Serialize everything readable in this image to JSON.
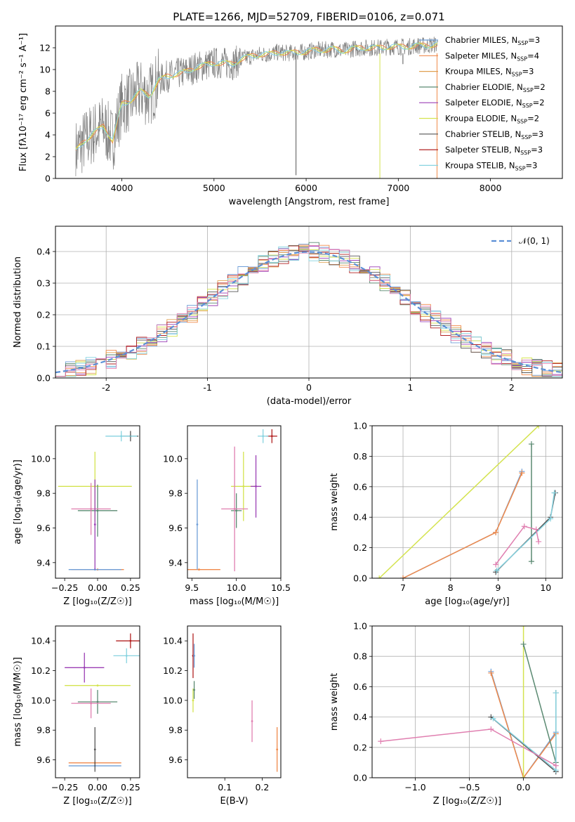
{
  "title": "PLATE=1266, MJD=52709, FIBERID=0106, z=0.071",
  "colors": {
    "chab_miles": "#6f9fd8",
    "salp_miles": "#f08a4b",
    "krou_miles": "#e0a050",
    "chab_elodie": "#5b8a72",
    "salp_elodie": "#9b3fb5",
    "krou_elodie": "#d4e34f",
    "chab_stelib": "#555555",
    "salp_stelib": "#b22222",
    "krou_stelib": "#87d3e0",
    "obs": "#808080",
    "norm": "#5b8fd6",
    "pink": "#e07fb0",
    "grid": "#b0b0b0"
  },
  "chart_data": [
    {
      "id": "spectrum",
      "type": "line",
      "xlabel": "wavelength [Angstrom, rest frame]",
      "ylabel": "Flux [fλ10⁻¹⁷ erg cm⁻² s⁻¹ A⁻¹]",
      "xlim": [
        3280,
        8780
      ],
      "ylim": [
        0,
        14
      ],
      "xticks": [
        4000,
        5000,
        6000,
        7000,
        8000
      ],
      "yticks": [
        0,
        2,
        4,
        6,
        8,
        10,
        12
      ],
      "grid": false,
      "legend": "upper-right",
      "observed": {
        "x": [
          3500,
          3600,
          3700,
          3800,
          3900,
          4000,
          4100,
          4200,
          4300,
          4400,
          4500,
          4600,
          4700,
          4800,
          4900,
          5000,
          5100,
          5200,
          5300,
          5400,
          5500,
          5600,
          5700,
          5800,
          5900,
          6000,
          6100,
          6200,
          6300,
          6400,
          6500,
          6600,
          6700,
          6800,
          6900,
          7000,
          7100,
          7200,
          7300,
          7400
        ],
        "y": [
          2.5,
          3.5,
          4.2,
          4.8,
          3.5,
          6.8,
          7.2,
          8.0,
          7.6,
          9.0,
          9.4,
          9.6,
          9.8,
          10.2,
          10.4,
          10.6,
          10.6,
          10.5,
          11.0,
          11.2,
          11.4,
          11.4,
          11.6,
          11.5,
          11.6,
          11.6,
          11.8,
          11.8,
          11.9,
          11.7,
          11.9,
          12.0,
          12.0,
          12.0,
          12.1,
          12.1,
          12.1,
          12.2,
          12.2,
          12.3
        ]
      },
      "legend_entries": [
        "Chabrier MILES, N_SSP=3",
        "Salpeter MILES, N_SSP=4",
        "Kroupa MILES, N_SSP=3",
        "Chabrier ELODIE, N_SSP=2",
        "Salpeter ELODIE, N_SSP=2",
        "Kroupa ELODIE, N_SSP=2",
        "Chabrier STELIB, N_SSP=3",
        "Salpeter STELIB, N_SSP=3",
        "Kroupa STELIB, N_SSP=3"
      ]
    },
    {
      "id": "residuals",
      "type": "line",
      "xlabel": "(data-model)/error",
      "ylabel": "Normed distribution",
      "xlim": [
        -2.5,
        2.5
      ],
      "ylim": [
        0,
        0.48
      ],
      "xticks": [
        -2,
        -1,
        0,
        1,
        2
      ],
      "yticks": [
        0.0,
        0.1,
        0.2,
        0.3,
        0.4
      ],
      "grid": true,
      "legend": "upper-right",
      "normal_label": "𝒩(0, 1)",
      "normal_mean": 0,
      "normal_sigma": 1
    },
    {
      "id": "age_vs_Z",
      "type": "scatter",
      "xlabel": "Z [log₁₀(Z/Z☉)]",
      "ylabel": "age  [log₁₀(age/yr)]",
      "xlim": [
        -0.32,
        0.32
      ],
      "ylim": [
        9.31,
        10.19
      ],
      "xticks": [
        -0.25,
        0.0,
        0.25
      ],
      "xticklabels": [
        "−0.25",
        "0.00",
        "0.25"
      ],
      "yticks": [
        9.4,
        9.6,
        9.8,
        10.0
      ],
      "points": [
        {
          "c": "salp_miles",
          "x": 0.0,
          "y": 9.36,
          "xerr": 0.2,
          "yerr": 0.0
        },
        {
          "c": "chab_miles",
          "x": -0.02,
          "y": 9.36,
          "xerr": 0.2,
          "yerr": 0.0
        },
        {
          "c": "krou_elodie",
          "x": -0.02,
          "y": 9.84,
          "xerr": 0.28,
          "yerr": 0.2
        },
        {
          "c": "chab_elodie",
          "x": 0.0,
          "y": 9.7,
          "xerr": 0.15,
          "yerr": 0.15
        },
        {
          "c": "pink",
          "x": -0.05,
          "y": 9.71,
          "xerr": 0.15,
          "yerr": 0.15
        },
        {
          "c": "salp_elodie",
          "x": -0.02,
          "y": 9.62,
          "xerr": 0.0,
          "yerr": 0.26
        },
        {
          "c": "chab_stelib",
          "x": 0.25,
          "y": 10.13,
          "xerr": 0.06,
          "yerr": 0.03
        },
        {
          "c": "krou_stelib",
          "x": 0.18,
          "y": 10.13,
          "xerr": 0.12,
          "yerr": 0.03
        }
      ]
    },
    {
      "id": "age_vs_mass",
      "type": "scatter",
      "xlabel": "mass [log₁₀(M/M☉)]",
      "ylabel": "",
      "xlim": [
        9.45,
        10.5
      ],
      "ylim": [
        9.31,
        10.19
      ],
      "xticks": [
        9.5,
        10.0,
        10.5
      ],
      "xticklabels": [
        "9.5",
        "10.0",
        "10.5"
      ],
      "yticks": [
        9.4,
        9.6,
        9.8,
        10.0
      ],
      "points": [
        {
          "c": "salp_miles",
          "x": 9.58,
          "y": 9.36,
          "xerr": 0.24,
          "yerr": 0.0
        },
        {
          "c": "chab_miles",
          "x": 9.56,
          "y": 9.62,
          "xerr": 0.0,
          "yerr": 0.26
        },
        {
          "c": "krou_elodie",
          "x": 10.08,
          "y": 9.84,
          "xerr": 0.14,
          "yerr": 0.2
        },
        {
          "c": "salp_elodie",
          "x": 10.22,
          "y": 9.84,
          "xerr": 0.06,
          "yerr": 0.18
        },
        {
          "c": "chab_elodie",
          "x": 10.0,
          "y": 9.7,
          "xerr": 0.06,
          "yerr": 0.1
        },
        {
          "c": "pink",
          "x": 9.98,
          "y": 9.71,
          "xerr": 0.15,
          "yerr": 0.36
        },
        {
          "c": "salp_stelib",
          "x": 10.4,
          "y": 10.13,
          "xerr": 0.06,
          "yerr": 0.04
        },
        {
          "c": "krou_stelib",
          "x": 10.3,
          "y": 10.13,
          "xerr": 0.06,
          "yerr": 0.04
        }
      ]
    },
    {
      "id": "weight_vs_age",
      "type": "line",
      "xlabel": "age  [log₁₀(age/yr)]",
      "ylabel": "mass weight",
      "xlim": [
        6.35,
        10.35
      ],
      "ylim": [
        0,
        1.0
      ],
      "xticks": [
        7,
        8,
        9,
        10
      ],
      "yticks": [
        0.0,
        0.2,
        0.4,
        0.6,
        0.8,
        1.0
      ],
      "grid": true,
      "series": [
        {
          "c": "chab_miles",
          "x": [
            7.0,
            8.95,
            9.5
          ],
          "y": [
            0.0,
            0.3,
            0.7
          ]
        },
        {
          "c": "salp_miles",
          "x": [
            7.0,
            8.95,
            9.5
          ],
          "y": [
            0.0,
            0.3,
            0.69
          ]
        },
        {
          "c": "krou_elodie",
          "x": [
            6.5,
            9.85
          ],
          "y": [
            0.0,
            1.0
          ]
        },
        {
          "c": "chab_elodie",
          "x": [
            9.7,
            9.7
          ],
          "y": [
            0.11,
            0.88
          ]
        },
        {
          "c": "chab_stelib",
          "x": [
            8.95,
            10.1,
            10.2
          ],
          "y": [
            0.04,
            0.4,
            0.56
          ]
        },
        {
          "c": "krou_stelib",
          "x": [
            8.97,
            10.1,
            10.18
          ],
          "y": [
            0.05,
            0.39,
            0.56
          ]
        },
        {
          "c": "pink",
          "x": [
            8.95,
            9.55,
            9.8,
            9.85
          ],
          "y": [
            0.09,
            0.34,
            0.32,
            0.24
          ]
        }
      ]
    },
    {
      "id": "mass_vs_Z",
      "type": "scatter",
      "xlabel": "Z [log₁₀(Z/Z☉)]",
      "ylabel": "mass [log₁₀(M/M☉)]",
      "xlim": [
        -0.32,
        0.32
      ],
      "ylim": [
        9.48,
        10.5
      ],
      "xticks": [
        -0.25,
        0.0,
        0.25
      ],
      "xticklabels": [
        "−0.25",
        "0.00",
        "0.25"
      ],
      "yticks": [
        9.6,
        9.8,
        10.0,
        10.2,
        10.4
      ],
      "points": [
        {
          "c": "salp_miles",
          "x": -0.02,
          "y": 9.58,
          "xerr": 0.2,
          "yerr": 0.0
        },
        {
          "c": "chab_miles",
          "x": -0.02,
          "y": 9.56,
          "xerr": 0.2,
          "yerr": 0.0
        },
        {
          "c": "chab_stelib",
          "x": -0.02,
          "y": 9.67,
          "xerr": 0.0,
          "yerr": 0.15
        },
        {
          "c": "krou_elodie",
          "x": 0.0,
          "y": 10.1,
          "xerr": 0.25,
          "yerr": 0.0
        },
        {
          "c": "chab_elodie",
          "x": 0.0,
          "y": 9.99,
          "xerr": 0.15,
          "yerr": 0.08
        },
        {
          "c": "pink",
          "x": -0.05,
          "y": 9.98,
          "xerr": 0.15,
          "yerr": 0.1
        },
        {
          "c": "salp_elodie",
          "x": -0.1,
          "y": 10.22,
          "xerr": 0.15,
          "yerr": 0.1
        },
        {
          "c": "salp_stelib",
          "x": 0.25,
          "y": 10.4,
          "xerr": 0.11,
          "yerr": 0.05
        },
        {
          "c": "krou_stelib",
          "x": 0.22,
          "y": 10.3,
          "xerr": 0.1,
          "yerr": 0.05
        }
      ]
    },
    {
      "id": "mass_vs_EBV",
      "type": "scatter",
      "xlabel": "E(B-V)",
      "ylabel": "",
      "xlim": [
        0.0,
        0.25
      ],
      "ylim": [
        9.48,
        10.5
      ],
      "xticks": [
        0.1,
        0.2
      ],
      "xticklabels": [
        "0.1",
        "0.2"
      ],
      "yticks": [
        9.6,
        9.8,
        10.0,
        10.2,
        10.4
      ],
      "points": [
        {
          "c": "salp_stelib",
          "x": 0.015,
          "y": 10.3,
          "xerr": 0.0,
          "yerr": 0.15
        },
        {
          "c": "chab_miles",
          "x": 0.018,
          "y": 10.3,
          "xerr": 0.0,
          "yerr": 0.08
        },
        {
          "c": "krou_elodie",
          "x": 0.015,
          "y": 10.0,
          "xerr": 0.0,
          "yerr": 0.08
        },
        {
          "c": "chab_elodie",
          "x": 0.018,
          "y": 10.07,
          "xerr": 0.0,
          "yerr": 0.06
        },
        {
          "c": "pink",
          "x": 0.173,
          "y": 9.86,
          "xerr": 0.0,
          "yerr": 0.14
        },
        {
          "c": "salp_miles",
          "x": 0.24,
          "y": 9.67,
          "xerr": 0.0,
          "yerr": 0.15
        }
      ]
    },
    {
      "id": "weight_vs_Z",
      "type": "line",
      "xlabel": "Z [log₁₀(Z/Z☉)]",
      "ylabel": "mass weight",
      "xlim": [
        -1.4,
        0.36
      ],
      "ylim": [
        0,
        1.0
      ],
      "xticks": [
        -1.0,
        -0.5,
        0.0
      ],
      "xticklabels": [
        "−1.0",
        "−0.5",
        "0.0"
      ],
      "yticks": [
        0.0,
        0.2,
        0.4,
        0.6,
        0.8,
        1.0
      ],
      "grid": true,
      "series": [
        {
          "c": "chab_miles",
          "x": [
            -0.3,
            0.0,
            0.3
          ],
          "y": [
            0.7,
            0.0,
            0.3
          ]
        },
        {
          "c": "salp_miles",
          "x": [
            -0.3,
            0.0,
            0.3
          ],
          "y": [
            0.69,
            0.0,
            0.29
          ]
        },
        {
          "c": "krou_elodie",
          "x": [
            0.0,
            0.0
          ],
          "y": [
            0.0,
            1.0
          ]
        },
        {
          "c": "chab_elodie",
          "x": [
            0.0,
            0.3
          ],
          "y": [
            0.88,
            0.1
          ]
        },
        {
          "c": "chab_stelib",
          "x": [
            -0.3,
            0.3,
            0.3
          ],
          "y": [
            0.4,
            0.04,
            0.56
          ]
        },
        {
          "c": "krou_stelib",
          "x": [
            -0.28,
            0.3,
            0.3
          ],
          "y": [
            0.39,
            0.05,
            0.56
          ]
        },
        {
          "c": "pink",
          "x": [
            -1.32,
            -0.3,
            0.3
          ],
          "y": [
            0.24,
            0.32,
            0.08
          ]
        }
      ]
    }
  ]
}
